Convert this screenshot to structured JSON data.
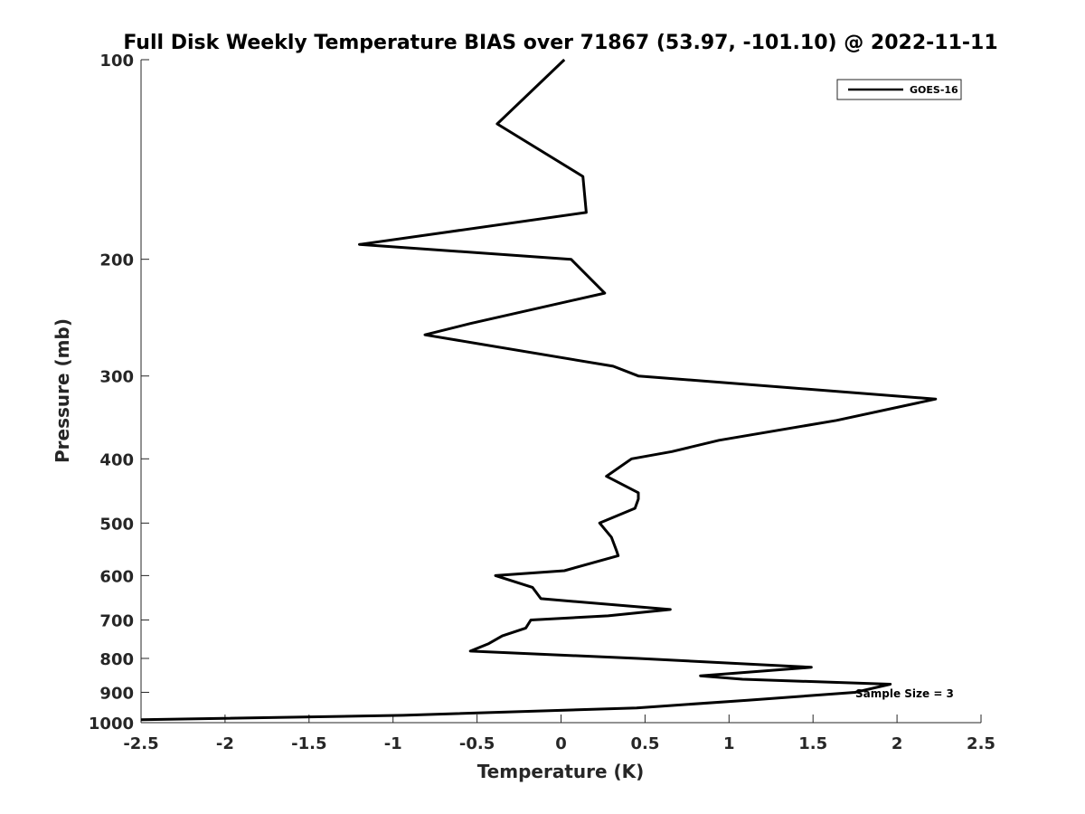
{
  "chart_data": {
    "type": "line",
    "title": "Full Disk Weekly Temperature BIAS over 71867 (53.97, -101.10) @ 2022-11-11",
    "xlabel": "Temperature (K)",
    "ylabel": "Pressure (mb)",
    "xlim": [
      -2.5,
      2.5
    ],
    "ylim": [
      100,
      1000
    ],
    "yscale": "log",
    "y_reversed": true,
    "xticks": [
      -2.5,
      -2,
      -1.5,
      -1,
      -0.5,
      0,
      0.5,
      1,
      1.5,
      2,
      2.5
    ],
    "xtick_labels": [
      "-2.5",
      "-2",
      "-1.5",
      "-1",
      "-0.5",
      "0",
      "0.5",
      "1",
      "1.5",
      "2",
      "2.5"
    ],
    "yticks": [
      100,
      200,
      300,
      400,
      500,
      600,
      700,
      800,
      900,
      1000
    ],
    "ytick_labels": [
      "100",
      "200",
      "300",
      "400",
      "500",
      "600",
      "700",
      "800",
      "900",
      "1000"
    ],
    "grid": false,
    "legend_position": "top-right",
    "annotation": "Sample Size = 3",
    "series": [
      {
        "name": "GOES-16",
        "color": "#000000",
        "points": [
          [
            0.02,
            100
          ],
          [
            -0.38,
            125
          ],
          [
            0.13,
            150
          ],
          [
            0.15,
            170
          ],
          [
            -1.2,
            190
          ],
          [
            0.06,
            200
          ],
          [
            0.26,
            225
          ],
          [
            -0.54,
            250
          ],
          [
            -0.81,
            260
          ],
          [
            0.31,
            290
          ],
          [
            0.46,
            300
          ],
          [
            2.23,
            325
          ],
          [
            1.64,
            350
          ],
          [
            0.94,
            375
          ],
          [
            0.66,
            390
          ],
          [
            0.42,
            400
          ],
          [
            0.27,
            425
          ],
          [
            0.46,
            450
          ],
          [
            0.46,
            460
          ],
          [
            0.44,
            475
          ],
          [
            0.23,
            500
          ],
          [
            0.3,
            525
          ],
          [
            0.33,
            550
          ],
          [
            0.34,
            560
          ],
          [
            0.02,
            590
          ],
          [
            -0.39,
            600
          ],
          [
            -0.17,
            625
          ],
          [
            -0.12,
            650
          ],
          [
            0.65,
            675
          ],
          [
            0.28,
            690
          ],
          [
            -0.18,
            700
          ],
          [
            -0.21,
            720
          ],
          [
            -0.35,
            740
          ],
          [
            -0.43,
            760
          ],
          [
            -0.54,
            780
          ],
          [
            0.46,
            800
          ],
          [
            1.49,
            825
          ],
          [
            0.83,
            850
          ],
          [
            1.08,
            860
          ],
          [
            1.96,
            875
          ],
          [
            1.75,
            900
          ],
          [
            1.11,
            925
          ],
          [
            0.45,
            950
          ],
          [
            -0.94,
            975
          ],
          [
            -2.5,
            990
          ]
        ]
      }
    ]
  }
}
